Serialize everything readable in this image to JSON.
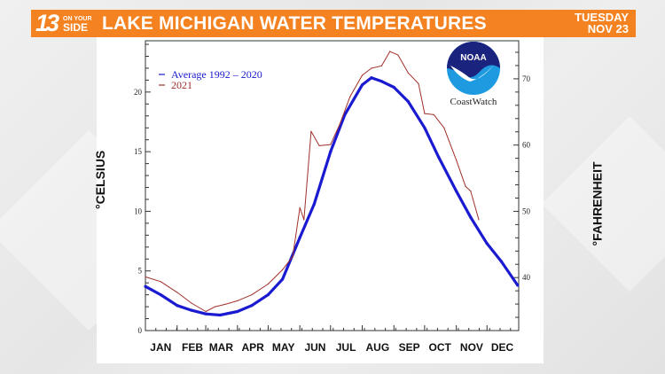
{
  "header": {
    "logo_number": "13",
    "logo_on": "ON YOUR",
    "logo_side": "SIDE",
    "title": "LAKE MICHIGAN WATER TEMPERATURES",
    "day": "TUESDAY",
    "date": "NOV 23",
    "accent_color": "#f58220"
  },
  "logo": {
    "noaa_text": "NOAA",
    "caption": "CoastWatch"
  },
  "chart_data": {
    "type": "line",
    "title": "",
    "xlabel": "",
    "ylabel": "°CELSIUS",
    "ylabel_right": "°FAHRENHEIT",
    "x_unit": "day of year",
    "xlim": [
      0,
      365
    ],
    "ylim": [
      0,
      24
    ],
    "ylim_right_f": [
      32,
      75.2
    ],
    "y_ticks": [
      0,
      5,
      10,
      15,
      20
    ],
    "y_ticks_right": [
      40,
      50,
      60,
      70
    ],
    "month_labels": [
      "JAN",
      "FEB",
      "MAR",
      "APR",
      "MAY",
      "JUN",
      "JUL",
      "AUG",
      "SEP",
      "OCT",
      "NOV",
      "DEC"
    ],
    "month_starts": [
      0,
      31,
      59,
      90,
      120,
      151,
      181,
      212,
      243,
      273,
      304,
      334
    ],
    "legend": "top-left",
    "grid": false,
    "series": [
      {
        "name": "Average 1992 - 2020",
        "color": "#1a1ad0",
        "x": [
          0,
          15,
          31,
          45,
          59,
          73,
          90,
          104,
          120,
          134,
          151,
          165,
          181,
          195,
          212,
          221,
          231,
          243,
          257,
          273,
          287,
          304,
          318,
          334,
          348,
          364
        ],
        "y": [
          3.7,
          3.0,
          2.1,
          1.7,
          1.4,
          1.3,
          1.6,
          2.1,
          3.0,
          4.3,
          7.8,
          10.6,
          15.0,
          18.1,
          20.6,
          21.2,
          20.9,
          20.4,
          19.2,
          17.0,
          14.5,
          11.7,
          9.5,
          7.3,
          5.8,
          3.8
        ]
      },
      {
        "name": "2021",
        "color": "#a0302a",
        "x": [
          0,
          15,
          31,
          45,
          59,
          68,
          78,
          90,
          104,
          120,
          134,
          144,
          151,
          155,
          162,
          170,
          181,
          190,
          200,
          212,
          221,
          231,
          239,
          247,
          257,
          267,
          273,
          282,
          292,
          304,
          313,
          318,
          326
        ],
        "y": [
          4.5,
          4.1,
          3.2,
          2.3,
          1.6,
          2.0,
          2.2,
          2.5,
          3.0,
          3.9,
          5.1,
          6.2,
          10.3,
          9.3,
          16.7,
          15.5,
          15.6,
          17.3,
          19.6,
          21.4,
          22.0,
          22.2,
          23.4,
          23.1,
          21.6,
          20.7,
          18.2,
          18.1,
          17.0,
          14.3,
          12.1,
          11.7,
          9.3
        ]
      }
    ]
  }
}
